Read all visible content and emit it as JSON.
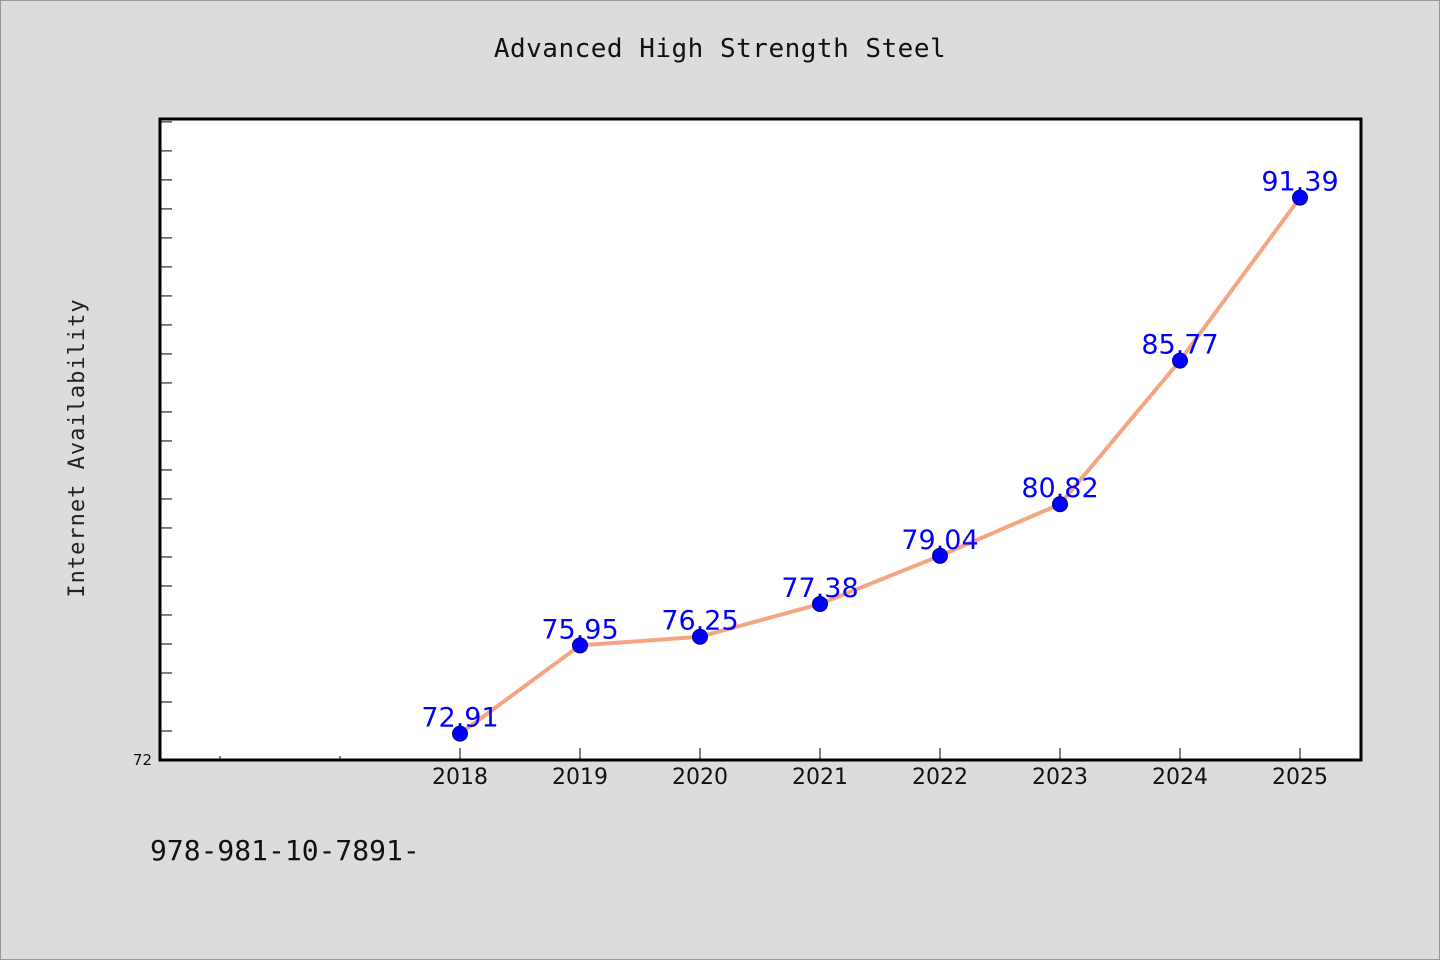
{
  "chart_data": {
    "type": "line",
    "title": "Advanced High Strength Steel",
    "ylabel": "Internet Availability",
    "xlabel": "",
    "categories": [
      "2018",
      "2019",
      "2020",
      "2021",
      "2022",
      "2023",
      "2024",
      "2025"
    ],
    "series": [
      {
        "values": [
          72.91,
          75.95,
          76.25,
          77.38,
          79.04,
          80.82,
          85.77,
          91.39
        ],
        "data_labels": [
          "72.91",
          "75.95",
          "76.25",
          "77.38",
          "79.04",
          "80.82",
          "85.77",
          "91.39"
        ],
        "line_color": "#f4a582",
        "marker_color": "#0000ff"
      }
    ],
    "ylim": [
      72,
      94.1
    ],
    "ytick_labels": [
      "72"
    ],
    "grid": false,
    "legend": "none"
  },
  "footer": {
    "text": "978-981-10-7891-"
  }
}
